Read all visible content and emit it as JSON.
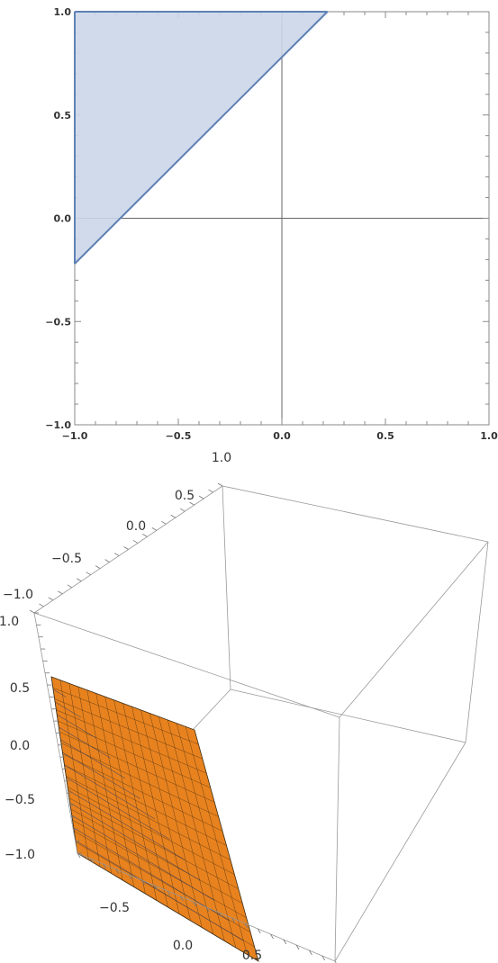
{
  "chart_data": [
    {
      "type": "area",
      "xlim": [
        -1.0,
        1.0
      ],
      "ylim": [
        -1.0,
        1.0
      ],
      "xticks": [
        -1.0,
        -0.5,
        0.0,
        0.5,
        1.0
      ],
      "yticks": [
        -1.0,
        -0.5,
        0.0,
        0.5,
        1.0
      ],
      "xtick_labels": [
        "−1.0",
        "−0.5",
        "0.0",
        "0.5",
        "1.0"
      ],
      "ytick_labels": [
        "−1.0",
        "−0.5",
        "0.0",
        "0.5",
        "1.0"
      ],
      "region": {
        "vertices": [
          [
            -1.0,
            -0.22
          ],
          [
            -1.0,
            1.0
          ],
          [
            0.22,
            1.0
          ]
        ]
      },
      "boundary_line": [
        [
          -1.0,
          -0.22
        ],
        [
          0.22,
          1.0
        ]
      ],
      "axes_at_origin": true,
      "fill_color": "#ccd6e8",
      "line_color": "#5e81b5",
      "grid": false
    },
    {
      "type": "surface3d",
      "xlim": [
        -1.0,
        1.0
      ],
      "ylim": [
        -1.0,
        1.0
      ],
      "zlim": [
        -1.0,
        1.0
      ],
      "x_axis_tick_labels": [
        "−1.0",
        "−0.5",
        "0.0",
        "0.5",
        "1.0"
      ],
      "y_axis_tick_labels": [
        "−0.5",
        "0.0",
        "0.5"
      ],
      "z_axis_tick_labels": [
        "1.0",
        "0.5",
        "0.0",
        "−0.5",
        "−1.0"
      ],
      "surface": {
        "top_face_color": "#e8821e",
        "side_face_color": "#1d2b50",
        "mesh_color": "#3a2a12"
      },
      "box": true,
      "grid": false
    }
  ]
}
